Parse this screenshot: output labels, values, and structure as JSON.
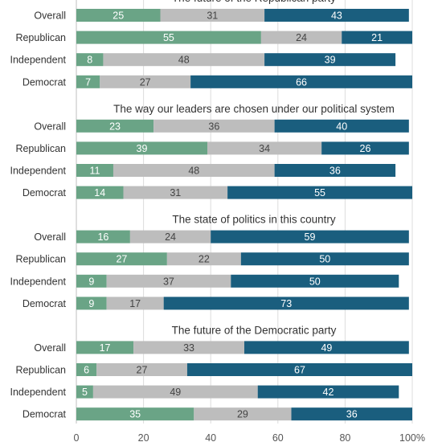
{
  "chart_data": {
    "type": "bar",
    "orientation": "horizontal",
    "stacked": true,
    "x_ticks": [
      "0",
      "20",
      "40",
      "60",
      "80",
      "100%"
    ],
    "xlim": [
      0,
      100
    ],
    "grid": true,
    "series_colors": [
      "#6aa486",
      "#bdbdbd",
      "#1a5e7e"
    ],
    "label_colors": [
      "#ffffff",
      "#444444",
      "#ffffff"
    ],
    "panels": [
      {
        "title": "The future of the Republican party",
        "categories": [
          "Overall",
          "Republican",
          "Independent",
          "Democrat"
        ],
        "values": [
          [
            25,
            31,
            43
          ],
          [
            55,
            24,
            21
          ],
          [
            8,
            48,
            39
          ],
          [
            7,
            27,
            66
          ]
        ]
      },
      {
        "title": "The way our leaders are chosen under our political system",
        "categories": [
          "Overall",
          "Republican",
          "Independent",
          "Democrat"
        ],
        "values": [
          [
            23,
            36,
            40
          ],
          [
            39,
            34,
            26
          ],
          [
            11,
            48,
            36
          ],
          [
            14,
            31,
            55
          ]
        ]
      },
      {
        "title": "The state of politics in this country",
        "categories": [
          "Overall",
          "Republican",
          "Independent",
          "Democrat"
        ],
        "values": [
          [
            16,
            24,
            59
          ],
          [
            27,
            22,
            50
          ],
          [
            9,
            37,
            50
          ],
          [
            9,
            17,
            73
          ]
        ]
      },
      {
        "title": "The future of the Democratic party",
        "categories": [
          "Overall",
          "Republican",
          "Independent",
          "Democrat"
        ],
        "values": [
          [
            17,
            33,
            49
          ],
          [
            6,
            27,
            67
          ],
          [
            5,
            49,
            42
          ],
          [
            35,
            29,
            36
          ]
        ]
      }
    ]
  }
}
